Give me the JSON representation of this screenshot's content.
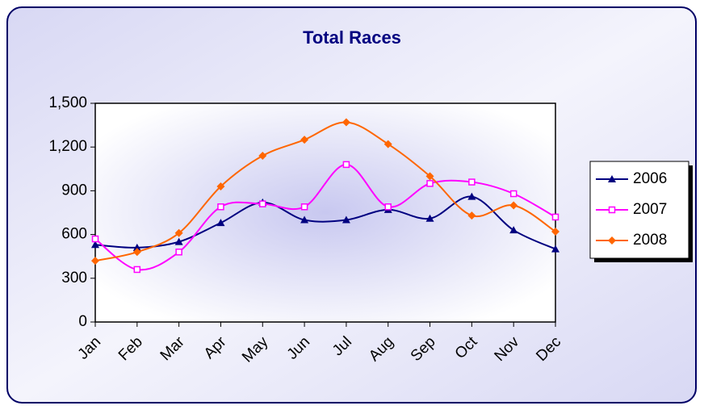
{
  "chart_data": {
    "type": "line",
    "title": "Total Races",
    "categories": [
      "Jan",
      "Feb",
      "Mar",
      "Apr",
      "May",
      "Jun",
      "Jul",
      "Aug",
      "Sep",
      "Oct",
      "Nov",
      "Dec"
    ],
    "series": [
      {
        "name": "2006",
        "color": "#000080",
        "marker": "triangle",
        "values": [
          530,
          510,
          550,
          680,
          820,
          700,
          700,
          770,
          710,
          860,
          630,
          500
        ]
      },
      {
        "name": "2007",
        "color": "#ff00ff",
        "marker": "square",
        "values": [
          570,
          360,
          480,
          790,
          810,
          790,
          1080,
          790,
          950,
          960,
          880,
          720
        ]
      },
      {
        "name": "2008",
        "color": "#ff6600",
        "marker": "diamond",
        "values": [
          420,
          480,
          610,
          930,
          1140,
          1250,
          1370,
          1220,
          1000,
          730,
          800,
          620
        ]
      }
    ],
    "ylim": [
      0,
      1500
    ],
    "yticks": [
      0,
      300,
      600,
      900,
      {
        "value": 1200,
        "label": "1,200"
      },
      {
        "value": 1500,
        "label": "1,500"
      }
    ],
    "smooth": true,
    "legend": "right"
  }
}
